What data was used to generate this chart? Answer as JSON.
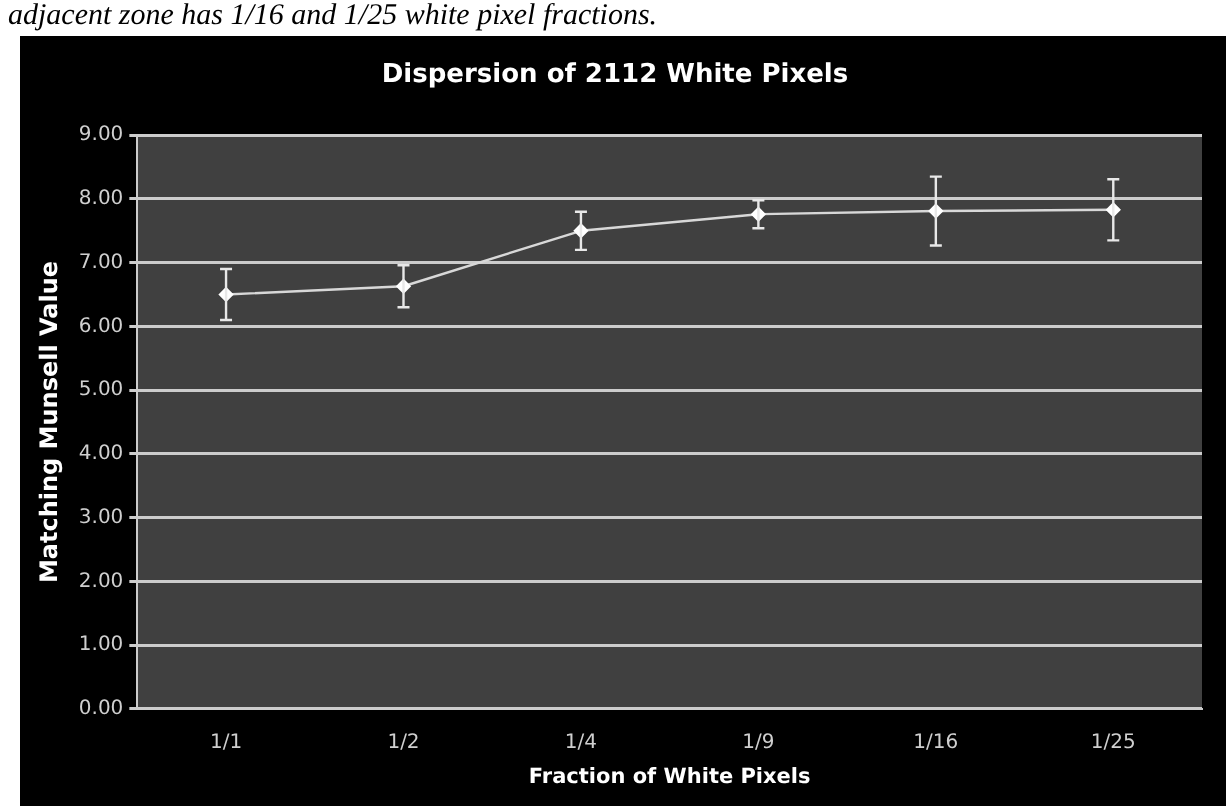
{
  "chart_data": {
    "type": "line",
    "title": "Dispersion of 2112 White Pixels",
    "xlabel": "Fraction of White Pixels",
    "ylabel": "Matching Munsell Value",
    "annotations": [
      "adjacent zone has 1/16 and 1/25 white pixel fractions."
    ],
    "categories": [
      "1/1",
      "1/2",
      "1/4",
      "1/9",
      "1/16",
      "1/25"
    ],
    "series": [
      {
        "color": "#d8d8d8",
        "values": [
          6.5,
          6.63,
          7.5,
          7.76,
          7.81,
          7.83
        ],
        "errors": [
          0.4,
          0.33,
          0.3,
          0.22,
          0.54,
          0.48
        ]
      }
    ],
    "ylim": [
      0,
      9
    ],
    "yticks": [
      {
        "value": 0,
        "label": "0.00"
      },
      {
        "value": 1,
        "label": "1.00"
      },
      {
        "value": 2,
        "label": "2.00"
      },
      {
        "value": 3,
        "label": "3.00"
      },
      {
        "value": 4,
        "label": "4.00"
      },
      {
        "value": 5,
        "label": "5.00"
      },
      {
        "value": 6,
        "label": "6.00"
      },
      {
        "value": 7,
        "label": "7.00"
      },
      {
        "value": 8,
        "label": "8.00"
      },
      {
        "value": 9,
        "label": "9.00"
      }
    ],
    "grid": "y",
    "legend": false,
    "marker": "diamond",
    "line_style": "solid"
  }
}
